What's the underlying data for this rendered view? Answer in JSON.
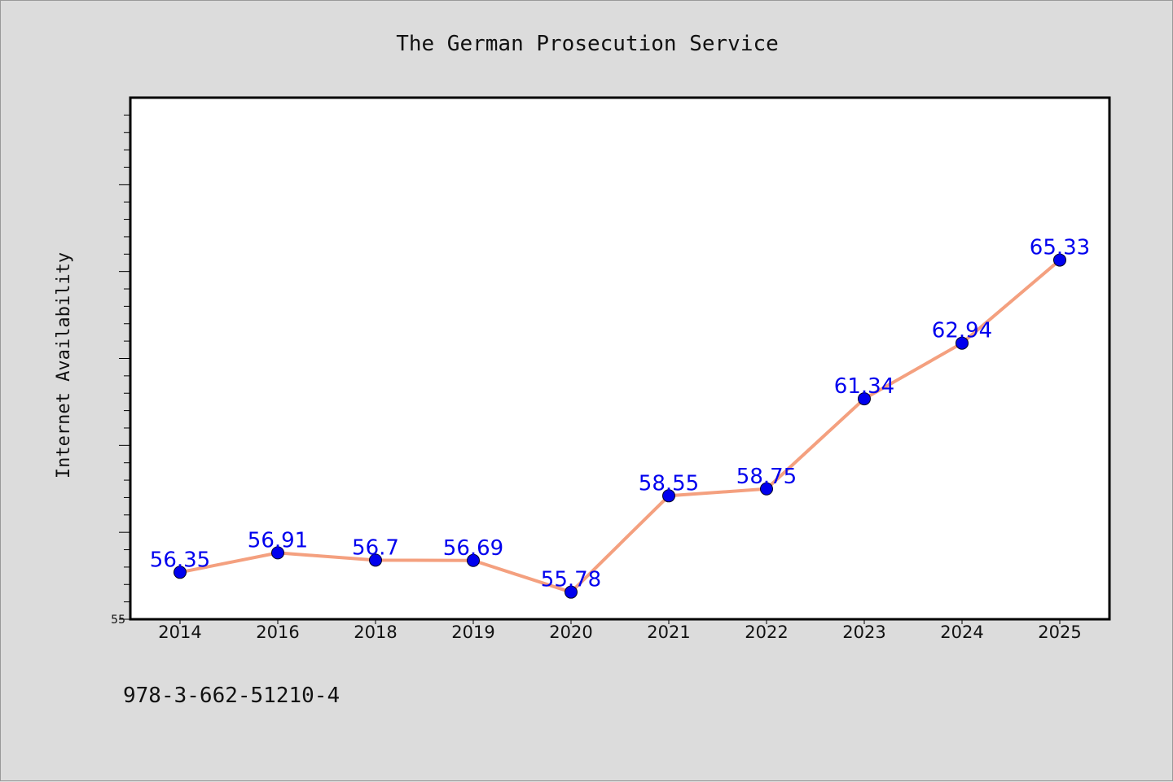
{
  "chart_data": {
    "type": "line",
    "title": "The German Prosecution Service",
    "xlabel": "",
    "ylabel": "Internet Availability",
    "categories": [
      "2014",
      "2016",
      "2018",
      "2019",
      "2020",
      "2021",
      "2022",
      "2023",
      "2024",
      "2025"
    ],
    "series": [
      {
        "values": [
          56.35,
          56.91,
          56.7,
          56.69,
          55.78,
          58.55,
          58.75,
          61.34,
          62.94,
          65.33
        ]
      }
    ],
    "data_labels": [
      "56.35",
      "56.91",
      "56.7",
      "56.69",
      "55.78",
      "58.55",
      "58.75",
      "61.34",
      "62.94",
      "65.33"
    ],
    "ylim": [
      55,
      70
    ],
    "y_tick_labels": [
      "55"
    ],
    "grid": false,
    "legend": "none",
    "colors": {
      "line": "#f4a07f",
      "marker": "#0000ee",
      "label": "#0000ee",
      "plot_background": "#ffffff",
      "figure_background": "#dcdcdc"
    }
  },
  "footer": {
    "isbn": "978-3-662-51210-4"
  }
}
